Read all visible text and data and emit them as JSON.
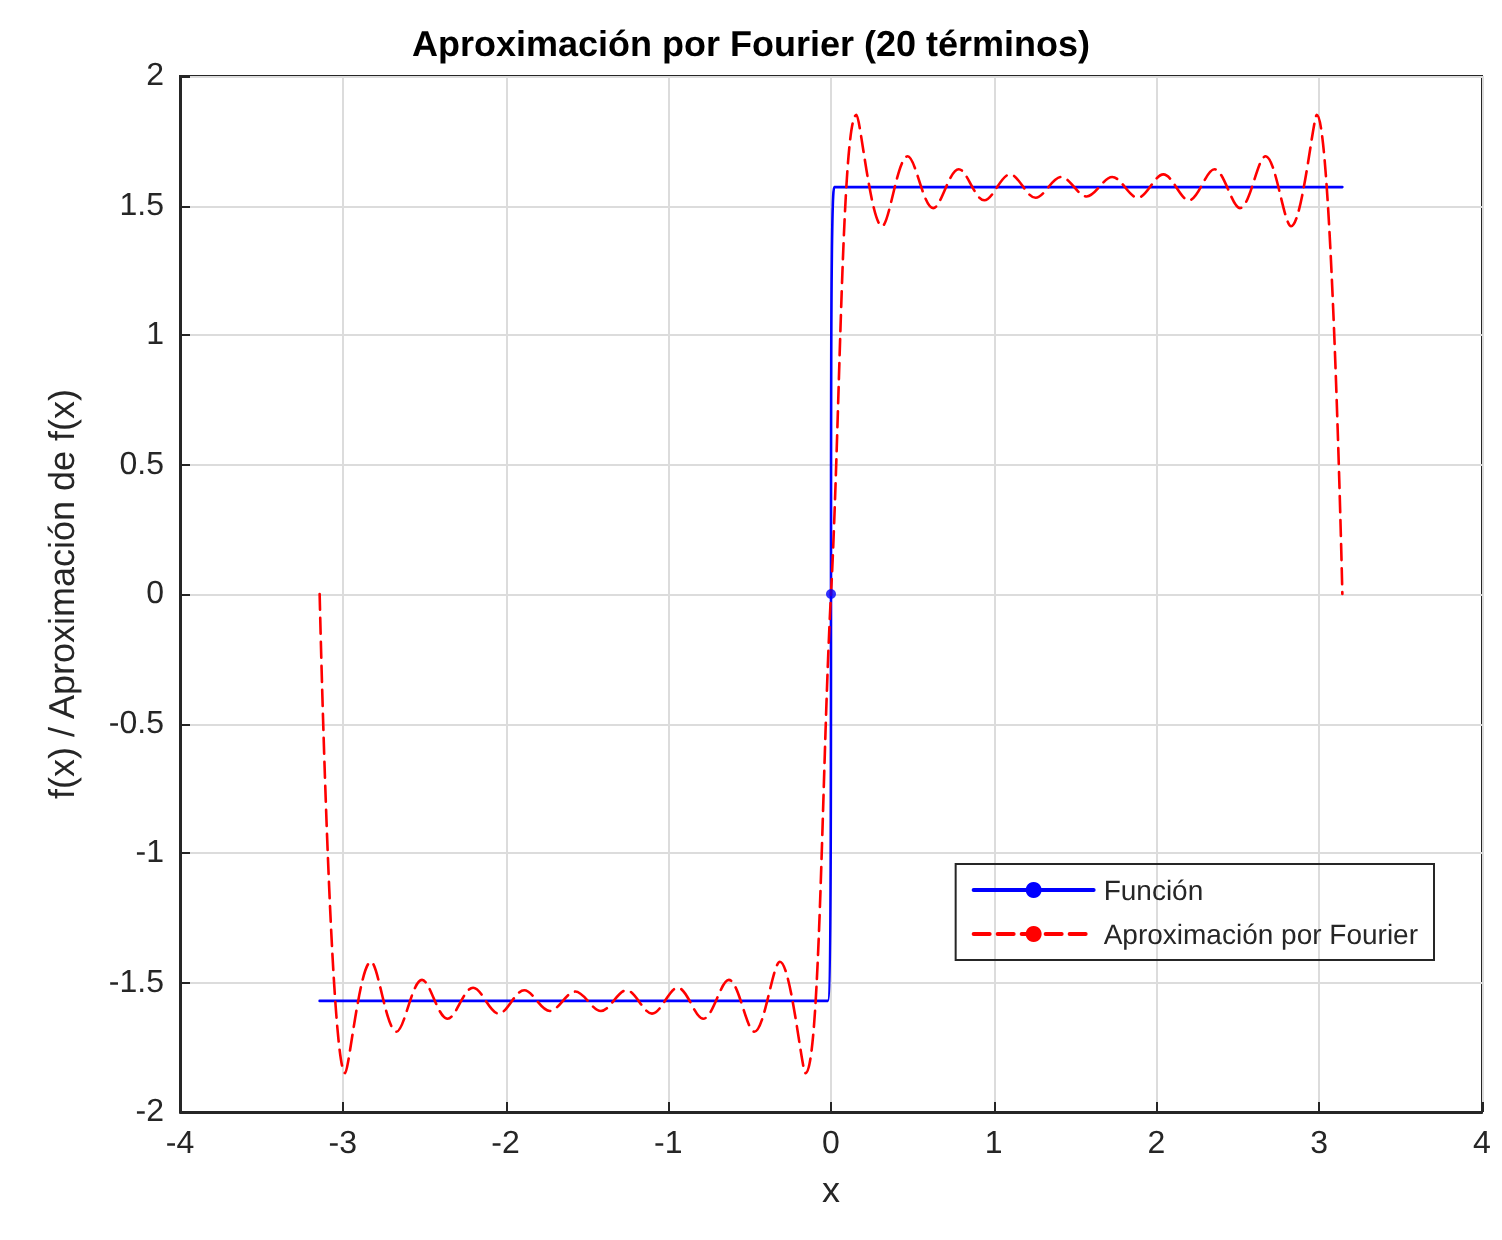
{
  "chart_data": {
    "type": "line",
    "title": "Aproximación por Fourier (20 términos)",
    "xlabel": "x",
    "ylabel": "f(x) / Aproximación de f(x)",
    "xlim": [
      -4,
      4
    ],
    "xticks": [
      -4,
      -3,
      -2,
      -1,
      0,
      1,
      2,
      3,
      4
    ],
    "ylim": [
      -2,
      2
    ],
    "yticks": [
      -2,
      -1.5,
      -1,
      -0.5,
      0,
      0.5,
      1,
      1.5,
      2
    ],
    "grid": true,
    "legend": "bottom right",
    "marker": "none",
    "series": [
      {
        "name": "Función",
        "color": "#0000ff",
        "line_style": "solid",
        "x": [
          -3.142,
          -0.02,
          0.02,
          3.142
        ],
        "values": [
          -1.571,
          -1.571,
          1.571,
          1.571
        ]
      },
      {
        "type": "scatter",
        "color": "#0000ff",
        "marker": "circle",
        "x": [
          0
        ],
        "values": [
          0
        ]
      },
      {
        "name": "Aproximación por Fourier",
        "color": "#ff0000",
        "line_style": "dashed",
        "x": [
          -3.142,
          -2.985,
          -2.827,
          -2.67,
          -2.513,
          -2.356,
          -2.199,
          -2.042,
          -1.885,
          -1.728,
          -1.571,
          -1.414,
          -1.257,
          -1.1,
          -0.942,
          -0.785,
          -0.628,
          -0.471,
          -0.314,
          -0.157,
          0,
          0.157,
          0.314,
          0.471,
          0.628,
          0.785,
          0.942,
          1.1,
          1.257,
          1.414,
          1.571,
          1.728,
          1.885,
          2.042,
          2.199,
          2.356,
          2.513,
          2.67,
          2.827,
          2.985,
          3.142
        ],
        "values": [
          0,
          -1.85,
          -1.42,
          -1.69,
          -1.49,
          -1.64,
          -1.52,
          -1.62,
          -1.53,
          -1.61,
          -1.535,
          -1.61,
          -1.53,
          -1.62,
          -1.52,
          -1.64,
          -1.49,
          -1.69,
          -1.42,
          -1.85,
          0,
          1.85,
          1.42,
          1.69,
          1.49,
          1.64,
          1.52,
          1.62,
          1.53,
          1.61,
          1.535,
          1.61,
          1.53,
          1.62,
          1.52,
          1.64,
          1.49,
          1.69,
          1.42,
          1.85,
          0
        ]
      }
    ]
  }
}
